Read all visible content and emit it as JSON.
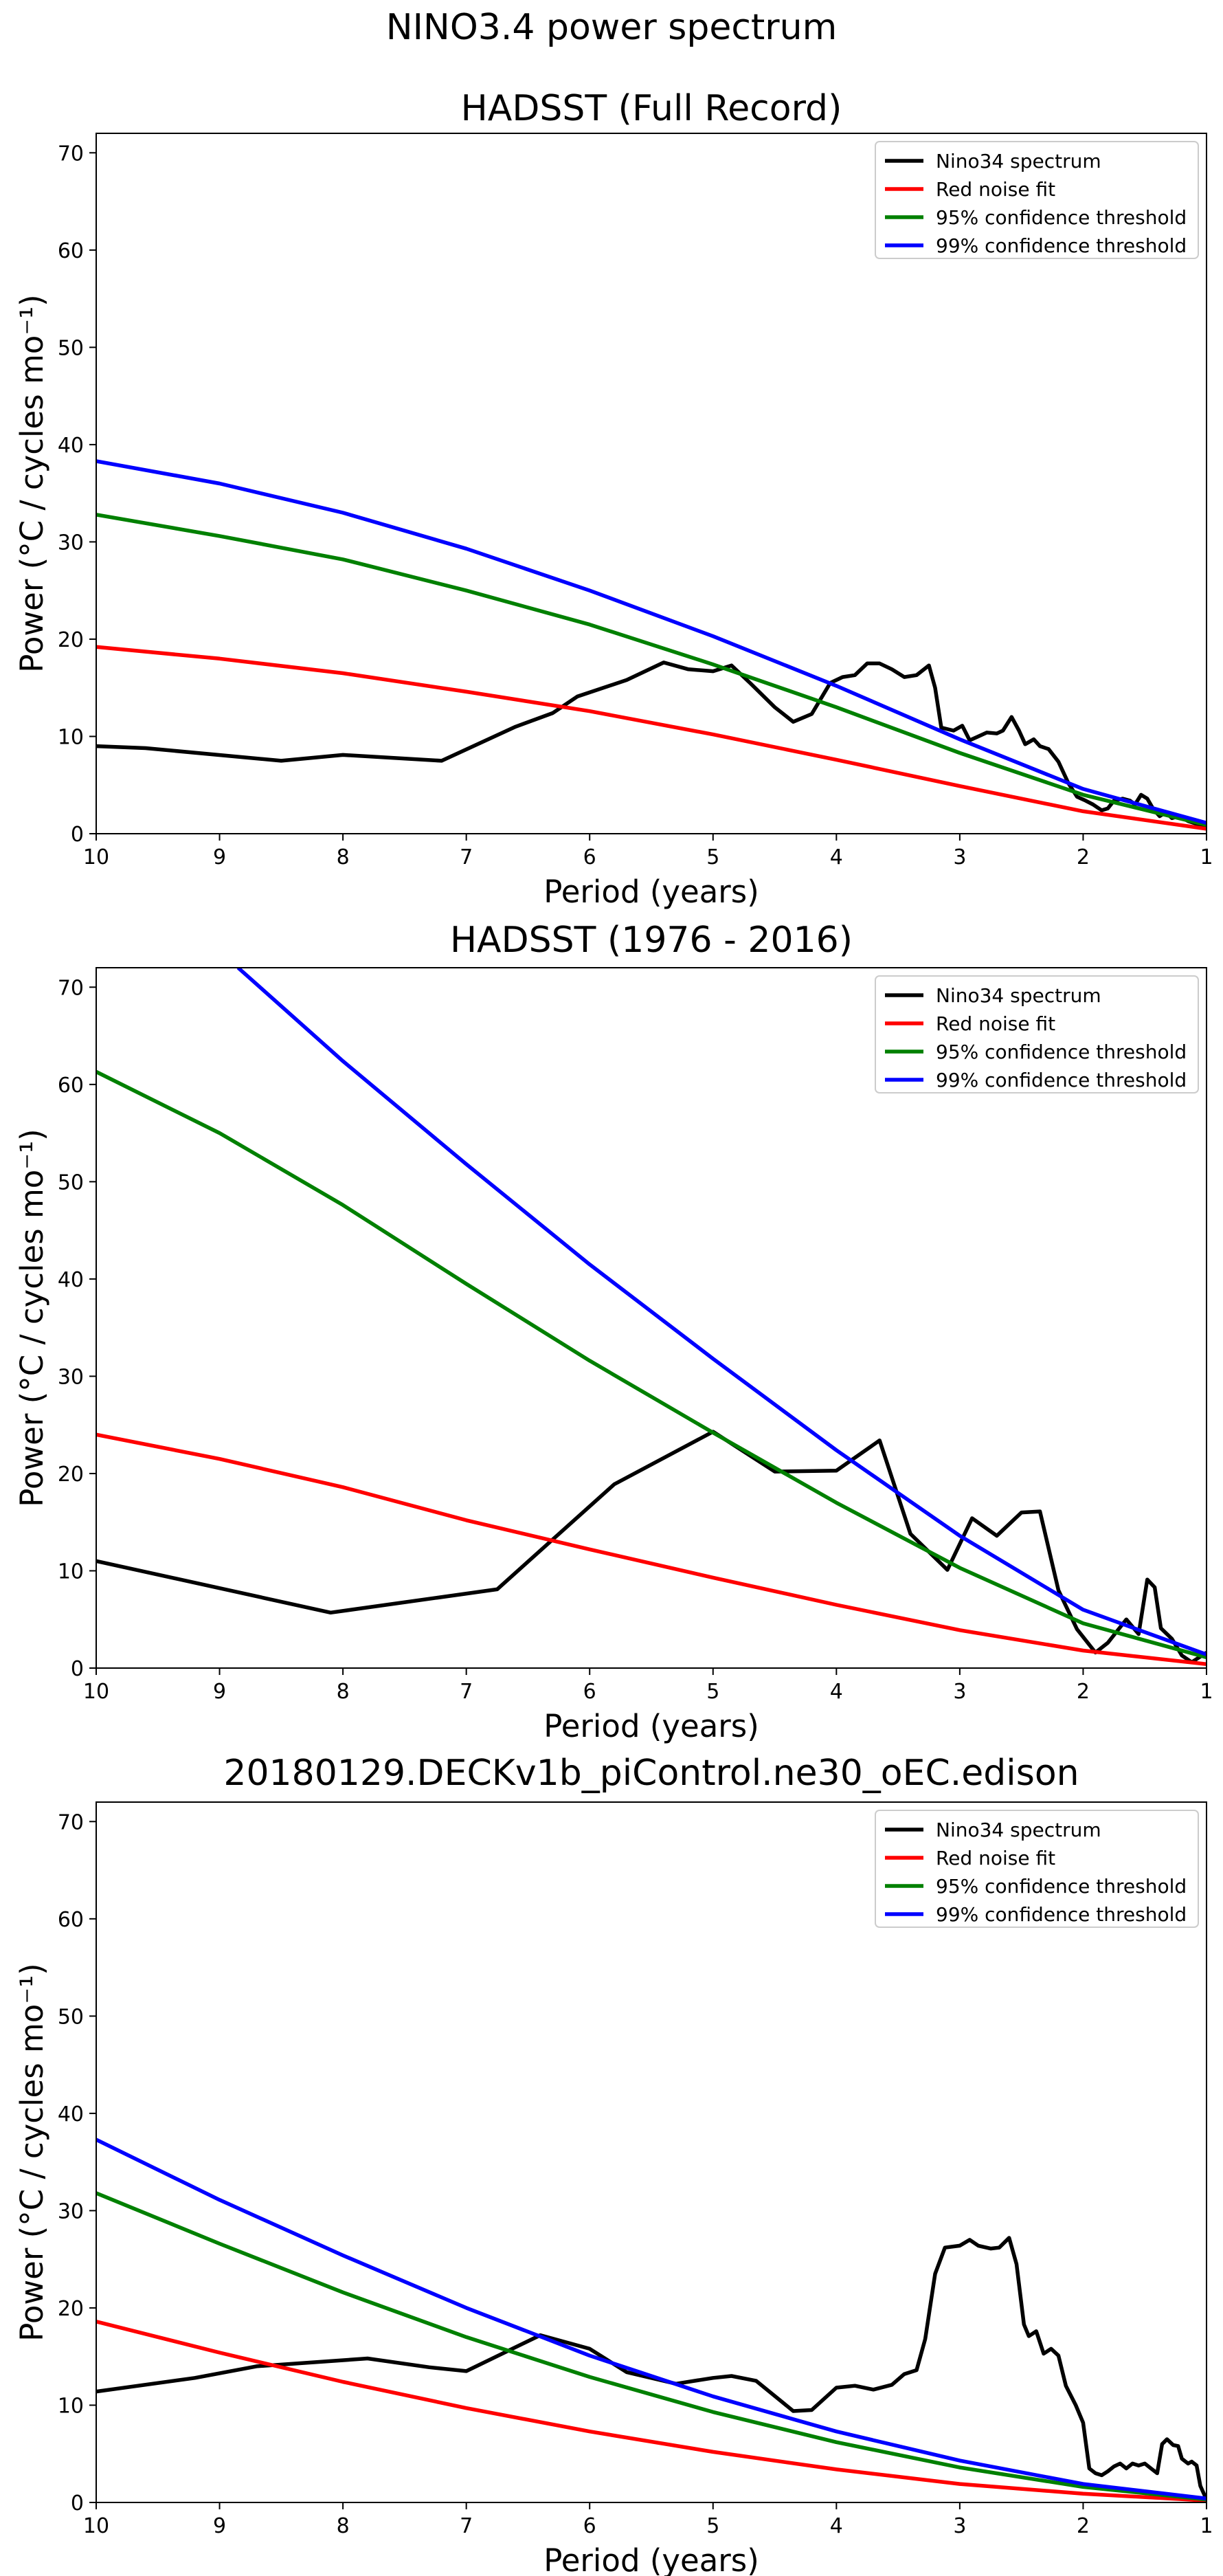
{
  "figure": {
    "suptitle": "NINO3.4 power spectrum"
  },
  "series_colors": {
    "Nino34 spectrum": "#000000",
    "Red noise fit": "#ff0000",
    "95% confidence threshold": "#008000",
    "99% confidence threshold": "#0000ff"
  },
  "chart_data": [
    {
      "type": "line",
      "title": "HADSST (Full Record)",
      "xlabel": "Period (years)",
      "ylabel": "Power (°C / cycles mo⁻¹)",
      "xlim": [
        10,
        1
      ],
      "ylim": [
        0,
        72
      ],
      "x_ticks": [
        "10",
        "9",
        "8",
        "7",
        "6",
        "5",
        "4",
        "3",
        "2",
        "1"
      ],
      "y_ticks": [
        "0",
        "10",
        "20",
        "30",
        "40",
        "50",
        "60",
        "70"
      ],
      "legend_position": "top-right",
      "grid": false,
      "series": [
        {
          "name": "Nino34 spectrum",
          "color": "#000000",
          "points": [
            [
              10,
              9.0
            ],
            [
              9.6,
              8.8
            ],
            [
              8.5,
              7.5
            ],
            [
              8.0,
              8.1
            ],
            [
              7.2,
              7.5
            ],
            [
              6.6,
              11.0
            ],
            [
              6.3,
              12.4
            ],
            [
              6.1,
              14.1
            ],
            [
              5.7,
              15.8
            ],
            [
              5.4,
              17.6
            ],
            [
              5.2,
              16.9
            ],
            [
              5.0,
              16.7
            ],
            [
              4.85,
              17.3
            ],
            [
              4.7,
              15.5
            ],
            [
              4.5,
              13.0
            ],
            [
              4.35,
              11.5
            ],
            [
              4.2,
              12.3
            ],
            [
              4.05,
              15.5
            ],
            [
              3.95,
              16.1
            ],
            [
              3.85,
              16.3
            ],
            [
              3.75,
              17.5
            ],
            [
              3.65,
              17.5
            ],
            [
              3.55,
              16.9
            ],
            [
              3.45,
              16.1
            ],
            [
              3.35,
              16.3
            ],
            [
              3.25,
              17.3
            ],
            [
              3.2,
              15.0
            ],
            [
              3.15,
              10.9
            ],
            [
              3.05,
              10.6
            ],
            [
              2.98,
              11.1
            ],
            [
              2.92,
              9.6
            ],
            [
              2.85,
              10.0
            ],
            [
              2.78,
              10.4
            ],
            [
              2.7,
              10.3
            ],
            [
              2.65,
              10.6
            ],
            [
              2.58,
              12.0
            ],
            [
              2.52,
              10.6
            ],
            [
              2.47,
              9.2
            ],
            [
              2.4,
              9.7
            ],
            [
              2.35,
              9.0
            ],
            [
              2.28,
              8.7
            ],
            [
              2.2,
              7.4
            ],
            [
              2.12,
              5.2
            ],
            [
              2.05,
              3.8
            ],
            [
              1.98,
              3.4
            ],
            [
              1.92,
              3.0
            ],
            [
              1.85,
              2.4
            ],
            [
              1.8,
              2.6
            ],
            [
              1.75,
              3.4
            ],
            [
              1.68,
              3.6
            ],
            [
              1.62,
              3.4
            ],
            [
              1.58,
              3.0
            ],
            [
              1.53,
              4.0
            ],
            [
              1.48,
              3.6
            ],
            [
              1.43,
              2.5
            ],
            [
              1.38,
              1.8
            ],
            [
              1.33,
              2.2
            ],
            [
              1.28,
              1.6
            ],
            [
              1.22,
              1.8
            ],
            [
              1.15,
              1.3
            ],
            [
              1.08,
              1.0
            ],
            [
              1.0,
              0.8
            ]
          ]
        },
        {
          "name": "Red noise fit",
          "color": "#ff0000",
          "points": [
            [
              10,
              19.2
            ],
            [
              9,
              18.0
            ],
            [
              8,
              16.5
            ],
            [
              7,
              14.6
            ],
            [
              6,
              12.6
            ],
            [
              5,
              10.2
            ],
            [
              4,
              7.6
            ],
            [
              3,
              4.9
            ],
            [
              2,
              2.3
            ],
            [
              1,
              0.5
            ]
          ]
        },
        {
          "name": "95% confidence threshold",
          "color": "#008000",
          "points": [
            [
              10,
              32.8
            ],
            [
              9,
              30.6
            ],
            [
              8,
              28.2
            ],
            [
              7,
              25.0
            ],
            [
              6,
              21.5
            ],
            [
              5,
              17.4
            ],
            [
              4,
              13.0
            ],
            [
              3,
              8.3
            ],
            [
              2,
              4.0
            ],
            [
              1,
              0.9
            ]
          ]
        },
        {
          "name": "99% confidence threshold",
          "color": "#0000ff",
          "points": [
            [
              10,
              38.3
            ],
            [
              9,
              36.0
            ],
            [
              8,
              33.0
            ],
            [
              7,
              29.3
            ],
            [
              6,
              25.0
            ],
            [
              5,
              20.3
            ],
            [
              4,
              15.2
            ],
            [
              3,
              9.7
            ],
            [
              2,
              4.6
            ],
            [
              1,
              1.1
            ]
          ]
        }
      ]
    },
    {
      "type": "line",
      "title": "HADSST (1976 - 2016)",
      "xlabel": "Period (years)",
      "ylabel": "Power (°C / cycles mo⁻¹)",
      "xlim": [
        10,
        1
      ],
      "ylim": [
        0,
        72
      ],
      "x_ticks": [
        "10",
        "9",
        "8",
        "7",
        "6",
        "5",
        "4",
        "3",
        "2",
        "1"
      ],
      "y_ticks": [
        "0",
        "10",
        "20",
        "30",
        "40",
        "50",
        "60",
        "70"
      ],
      "legend_position": "top-right",
      "grid": false,
      "series": [
        {
          "name": "Nino34 spectrum",
          "color": "#000000",
          "points": [
            [
              10,
              11.0
            ],
            [
              8.1,
              5.7
            ],
            [
              6.75,
              8.1
            ],
            [
              5.8,
              18.9
            ],
            [
              5.0,
              24.3
            ],
            [
              4.5,
              20.2
            ],
            [
              4.0,
              20.3
            ],
            [
              3.65,
              23.4
            ],
            [
              3.4,
              13.8
            ],
            [
              3.1,
              10.1
            ],
            [
              2.9,
              15.4
            ],
            [
              2.7,
              13.6
            ],
            [
              2.5,
              16.0
            ],
            [
              2.35,
              16.1
            ],
            [
              2.2,
              8.0
            ],
            [
              2.05,
              4.0
            ],
            [
              1.9,
              1.6
            ],
            [
              1.8,
              2.6
            ],
            [
              1.65,
              5.0
            ],
            [
              1.55,
              3.5
            ],
            [
              1.48,
              9.1
            ],
            [
              1.42,
              8.3
            ],
            [
              1.37,
              4.1
            ],
            [
              1.28,
              3.0
            ],
            [
              1.2,
              1.3
            ],
            [
              1.12,
              0.6
            ],
            [
              1.0,
              1.6
            ]
          ]
        },
        {
          "name": "Red noise fit",
          "color": "#ff0000",
          "points": [
            [
              10,
              24.0
            ],
            [
              9,
              21.5
            ],
            [
              8,
              18.6
            ],
            [
              7,
              15.2
            ],
            [
              6,
              12.2
            ],
            [
              5,
              9.3
            ],
            [
              4,
              6.5
            ],
            [
              3,
              3.9
            ],
            [
              2,
              1.8
            ],
            [
              1,
              0.4
            ]
          ]
        },
        {
          "name": "95% confidence threshold",
          "color": "#008000",
          "points": [
            [
              10,
              61.3
            ],
            [
              9,
              55.0
            ],
            [
              8,
              47.6
            ],
            [
              7,
              39.5
            ],
            [
              6,
              31.6
            ],
            [
              5,
              24.2
            ],
            [
              4,
              17.0
            ],
            [
              3,
              10.3
            ],
            [
              2,
              4.6
            ],
            [
              1,
              1.1
            ]
          ]
        },
        {
          "name": "99% confidence threshold",
          "color": "#0000ff",
          "points": [
            [
              8.85,
              72.0
            ],
            [
              8,
              62.4
            ],
            [
              7,
              51.8
            ],
            [
              6,
              41.5
            ],
            [
              5,
              31.8
            ],
            [
              4,
              22.4
            ],
            [
              3,
              13.6
            ],
            [
              2,
              6.0
            ],
            [
              1,
              1.4
            ]
          ]
        }
      ]
    },
    {
      "type": "line",
      "title": "20180129.DECKv1b_piControl.ne30_oEC.edison",
      "xlabel": "Period (years)",
      "ylabel": "Power (°C / cycles mo⁻¹)",
      "xlim": [
        10,
        1
      ],
      "ylim": [
        0,
        72
      ],
      "x_ticks": [
        "10",
        "9",
        "8",
        "7",
        "6",
        "5",
        "4",
        "3",
        "2",
        "1"
      ],
      "y_ticks": [
        "0",
        "10",
        "20",
        "30",
        "40",
        "50",
        "60",
        "70"
      ],
      "legend_position": "top-right",
      "grid": false,
      "series": [
        {
          "name": "Nino34 spectrum",
          "color": "#000000",
          "points": [
            [
              10,
              11.4
            ],
            [
              9.2,
              12.8
            ],
            [
              8.7,
              14.0
            ],
            [
              7.8,
              14.8
            ],
            [
              7.3,
              13.9
            ],
            [
              7.0,
              13.5
            ],
            [
              6.4,
              17.2
            ],
            [
              6.0,
              15.8
            ],
            [
              5.7,
              13.4
            ],
            [
              5.3,
              12.2
            ],
            [
              5.0,
              12.8
            ],
            [
              4.85,
              13.0
            ],
            [
              4.65,
              12.5
            ],
            [
              4.35,
              9.4
            ],
            [
              4.2,
              9.5
            ],
            [
              4.0,
              11.8
            ],
            [
              3.85,
              12.0
            ],
            [
              3.7,
              11.6
            ],
            [
              3.55,
              12.1
            ],
            [
              3.45,
              13.2
            ],
            [
              3.35,
              13.6
            ],
            [
              3.28,
              16.8
            ],
            [
              3.2,
              23.5
            ],
            [
              3.12,
              26.2
            ],
            [
              3.0,
              26.4
            ],
            [
              2.92,
              27.0
            ],
            [
              2.85,
              26.4
            ],
            [
              2.75,
              26.1
            ],
            [
              2.68,
              26.2
            ],
            [
              2.6,
              27.2
            ],
            [
              2.54,
              24.5
            ],
            [
              2.48,
              18.3
            ],
            [
              2.44,
              17.1
            ],
            [
              2.38,
              17.6
            ],
            [
              2.32,
              15.3
            ],
            [
              2.26,
              15.8
            ],
            [
              2.2,
              15.1
            ],
            [
              2.14,
              12.0
            ],
            [
              2.06,
              10.0
            ],
            [
              2.0,
              8.2
            ],
            [
              1.95,
              3.5
            ],
            [
              1.9,
              3.0
            ],
            [
              1.85,
              2.8
            ],
            [
              1.8,
              3.2
            ],
            [
              1.75,
              3.7
            ],
            [
              1.7,
              4.0
            ],
            [
              1.65,
              3.5
            ],
            [
              1.6,
              4.0
            ],
            [
              1.55,
              3.8
            ],
            [
              1.5,
              4.0
            ],
            [
              1.45,
              3.5
            ],
            [
              1.4,
              3.0
            ],
            [
              1.36,
              6.0
            ],
            [
              1.32,
              6.5
            ],
            [
              1.27,
              5.9
            ],
            [
              1.23,
              5.8
            ],
            [
              1.2,
              4.5
            ],
            [
              1.15,
              4.0
            ],
            [
              1.12,
              4.2
            ],
            [
              1.08,
              3.8
            ],
            [
              1.05,
              1.7
            ],
            [
              1.0,
              0.3
            ]
          ]
        },
        {
          "name": "Red noise fit",
          "color": "#ff0000",
          "points": [
            [
              10,
              18.6
            ],
            [
              9,
              15.4
            ],
            [
              8,
              12.4
            ],
            [
              7,
              9.7
            ],
            [
              6,
              7.3
            ],
            [
              5,
              5.2
            ],
            [
              4,
              3.4
            ],
            [
              3,
              1.9
            ],
            [
              2,
              0.9
            ],
            [
              1,
              0.2
            ]
          ]
        },
        {
          "name": "95% confidence threshold",
          "color": "#008000",
          "points": [
            [
              10,
              31.8
            ],
            [
              9,
              26.6
            ],
            [
              8,
              21.6
            ],
            [
              7,
              17.0
            ],
            [
              6,
              12.9
            ],
            [
              5,
              9.3
            ],
            [
              4,
              6.2
            ],
            [
              3,
              3.6
            ],
            [
              2,
              1.6
            ],
            [
              1,
              0.3
            ]
          ]
        },
        {
          "name": "99% confidence threshold",
          "color": "#0000ff",
          "points": [
            [
              10,
              37.3
            ],
            [
              9,
              31.1
            ],
            [
              8,
              25.4
            ],
            [
              7,
              20.0
            ],
            [
              6,
              15.1
            ],
            [
              5,
              10.9
            ],
            [
              4,
              7.3
            ],
            [
              3,
              4.3
            ],
            [
              2,
              1.9
            ],
            [
              1,
              0.4
            ]
          ]
        }
      ]
    }
  ]
}
